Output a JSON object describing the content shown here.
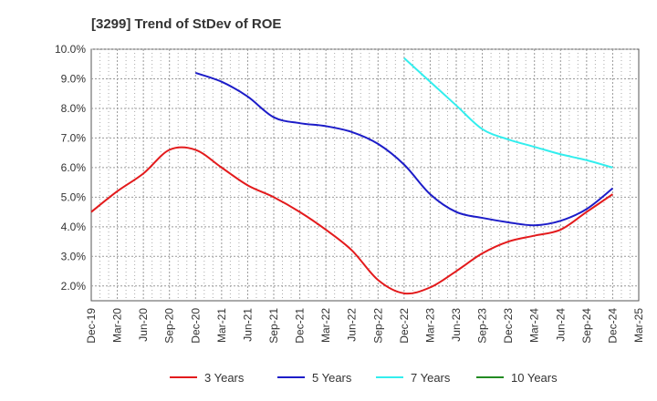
{
  "chart_data": {
    "type": "line",
    "title": "[3299]  Trend of StDev of ROE",
    "xlabel": "",
    "ylabel": "",
    "ylim": [
      1.5,
      10.0
    ],
    "yticks": [
      2.0,
      3.0,
      4.0,
      5.0,
      6.0,
      7.0,
      8.0,
      9.0,
      10.0
    ],
    "ytick_labels": [
      "2.0%",
      "3.0%",
      "4.0%",
      "5.0%",
      "6.0%",
      "7.0%",
      "8.0%",
      "9.0%",
      "10.0%"
    ],
    "categories": [
      "Dec-19",
      "Mar-20",
      "Jun-20",
      "Sep-20",
      "Dec-20",
      "Mar-21",
      "Jun-21",
      "Sep-21",
      "Dec-21",
      "Mar-22",
      "Jun-22",
      "Sep-22",
      "Dec-22",
      "Mar-23",
      "Jun-23",
      "Sep-23",
      "Dec-23",
      "Mar-24",
      "Jun-24",
      "Sep-24",
      "Dec-24",
      "Mar-25"
    ],
    "grid": true,
    "legend_position": "bottom",
    "series": [
      {
        "name": "3 Years",
        "color": "#e31a1c",
        "values": [
          4.5,
          5.2,
          5.8,
          6.6,
          6.6,
          6.0,
          5.4,
          5.0,
          4.5,
          3.9,
          3.2,
          2.2,
          1.75,
          1.95,
          2.5,
          3.1,
          3.5,
          3.7,
          3.9,
          4.5,
          5.1,
          null
        ]
      },
      {
        "name": "5 Years",
        "color": "#1c1cc8",
        "values": [
          null,
          null,
          null,
          null,
          9.2,
          8.9,
          8.4,
          7.7,
          7.5,
          7.4,
          7.2,
          6.8,
          6.1,
          5.1,
          4.5,
          4.3,
          4.15,
          4.05,
          4.2,
          4.6,
          5.3,
          null
        ]
      },
      {
        "name": "7 Years",
        "color": "#33eeee",
        "values": [
          null,
          null,
          null,
          null,
          null,
          null,
          null,
          null,
          null,
          null,
          null,
          null,
          9.7,
          8.9,
          8.1,
          7.3,
          6.95,
          6.7,
          6.45,
          6.25,
          6.0,
          null
        ]
      },
      {
        "name": "10 Years",
        "color": "#228b22",
        "values": [
          null,
          null,
          null,
          null,
          null,
          null,
          null,
          null,
          null,
          null,
          null,
          null,
          null,
          null,
          null,
          null,
          null,
          null,
          null,
          null,
          null,
          null
        ]
      }
    ]
  }
}
